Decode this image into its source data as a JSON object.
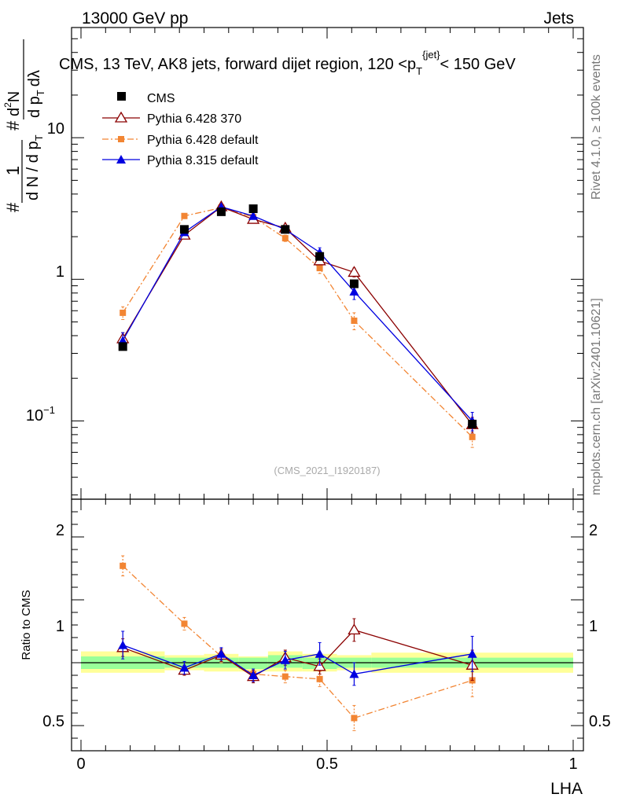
{
  "header": {
    "left": "13000 GeV pp",
    "right": "Jets"
  },
  "side_labels": {
    "rivet": "Rivet 4.1.0, ≥ 100k events",
    "mcplots": "mcplots.cern.ch [arXiv:2401.10621]"
  },
  "chart_data": {
    "type": "scatter",
    "title": "CMS, 13 TeV, AK8 jets, forward dijet region, 120 <p_T^{jet}< 150 GeV",
    "title_parts": {
      "main": "CMS, 13 TeV, AK8 jets, forward dijet region, 120 <p",
      "sub": "T",
      "sup": "{jet}",
      "tail": "< 150 GeV"
    },
    "watermark": "(CMS_2021_I1920187)",
    "xlabel": "LHA",
    "ylabel": "1/(dN/dp_T) · d²N/(dp_T dλ)",
    "ylabel_parts": {
      "hash": "#",
      "one": "1",
      "den": "d N / d p",
      "den_sub": "T",
      "num": "d",
      "num_sup": "2",
      "num_n": "N",
      "num_den": "d p",
      "num_den_sub": "T",
      "num_lambda": "dλ"
    },
    "xlim": [
      0,
      1
    ],
    "x_ticks": [
      0,
      0.5,
      1
    ],
    "x_tick_labels": [
      "0",
      "0.5",
      "1"
    ],
    "main_panel": {
      "yscale": "log",
      "ylim": [
        0.028,
        60
      ],
      "y_tick_labels": [
        {
          "value": 10,
          "label": "10"
        },
        {
          "value": 1,
          "label": "1"
        },
        {
          "value": 0.1,
          "label": "10",
          "sup": "−1"
        }
      ]
    },
    "ratio_panel": {
      "ylabel": "Ratio to CMS",
      "ylim": [
        0.3,
        2.3
      ],
      "y_tick_labels": [
        {
          "value": 2,
          "label": "2"
        },
        {
          "value": 1,
          "label": "1"
        },
        {
          "value": 0.5,
          "label": "0.5"
        }
      ],
      "bands": [
        {
          "x0": 0.0,
          "x1": 0.17,
          "green": [
            0.95,
            1.05
          ],
          "yellow": [
            0.92,
            1.09
          ]
        },
        {
          "x0": 0.17,
          "x1": 0.25,
          "green": [
            0.96,
            1.04
          ],
          "yellow": [
            0.94,
            1.06
          ]
        },
        {
          "x0": 0.25,
          "x1": 0.32,
          "green": [
            0.96,
            1.04
          ],
          "yellow": [
            0.93,
            1.07
          ]
        },
        {
          "x0": 0.32,
          "x1": 0.38,
          "green": [
            0.95,
            1.04
          ],
          "yellow": [
            0.93,
            1.05
          ]
        },
        {
          "x0": 0.38,
          "x1": 0.45,
          "green": [
            0.96,
            1.06
          ],
          "yellow": [
            0.93,
            1.09
          ]
        },
        {
          "x0": 0.45,
          "x1": 0.52,
          "green": [
            0.95,
            1.04
          ],
          "yellow": [
            0.93,
            1.07
          ]
        },
        {
          "x0": 0.52,
          "x1": 0.59,
          "green": [
            0.96,
            1.04
          ],
          "yellow": [
            0.94,
            1.06
          ]
        },
        {
          "x0": 0.59,
          "x1": 1.0,
          "green": [
            0.96,
            1.04
          ],
          "yellow": [
            0.92,
            1.08
          ]
        }
      ]
    },
    "x": [
      0.085,
      0.21,
      0.285,
      0.35,
      0.415,
      0.485,
      0.555,
      0.795
    ],
    "series": [
      {
        "name": "CMS",
        "color": "#000000",
        "marker": "square-filled",
        "line": "none",
        "values": [
          0.335,
          2.25,
          3.0,
          3.15,
          2.25,
          1.45,
          0.93,
          0.095
        ],
        "ratio": [
          1,
          1,
          1,
          1,
          1,
          1,
          1,
          1
        ]
      },
      {
        "name": "Pythia 6.428 370",
        "color": "#8b0000",
        "marker": "triangle-open",
        "line": "solid",
        "values": [
          0.38,
          2.05,
          3.25,
          2.65,
          2.3,
          1.35,
          1.12,
          0.094
        ],
        "errors": [
          0.04,
          0.08,
          0.1,
          0.1,
          0.1,
          0.08,
          0.08,
          0.012
        ],
        "ratio": [
          1.12,
          0.94,
          1.06,
          0.89,
          1.04,
          0.97,
          1.26,
          0.98
        ],
        "ratio_err": [
          0.07,
          0.04,
          0.05,
          0.05,
          0.06,
          0.06,
          0.09,
          0.12
        ]
      },
      {
        "name": "Pythia 6.428 default",
        "color": "#f28533",
        "marker": "square-filled",
        "line": "dashdot",
        "values": [
          0.58,
          2.8,
          3.2,
          2.75,
          1.95,
          1.2,
          0.51,
          0.077
        ],
        "errors": [
          0.06,
          0.1,
          0.1,
          0.1,
          0.1,
          0.1,
          0.07,
          0.012
        ],
        "ratio": [
          1.77,
          1.31,
          1.05,
          0.91,
          0.89,
          0.87,
          0.56,
          0.86
        ],
        "ratio_err": [
          0.08,
          0.05,
          0.05,
          0.04,
          0.05,
          0.06,
          0.1,
          0.13
        ]
      },
      {
        "name": "Pythia 8.315 default",
        "color": "#0000e0",
        "marker": "triangle-filled",
        "line": "solid",
        "values": [
          0.37,
          2.15,
          3.25,
          2.8,
          2.25,
          1.55,
          0.82,
          0.1
        ],
        "errors": [
          0.05,
          0.08,
          0.1,
          0.1,
          0.1,
          0.12,
          0.1,
          0.015
        ],
        "ratio": [
          1.14,
          0.96,
          1.07,
          0.9,
          1.02,
          1.07,
          0.91,
          1.07
        ],
        "ratio_err": [
          0.11,
          0.05,
          0.05,
          0.05,
          0.07,
          0.09,
          0.09,
          0.14
        ]
      }
    ]
  }
}
